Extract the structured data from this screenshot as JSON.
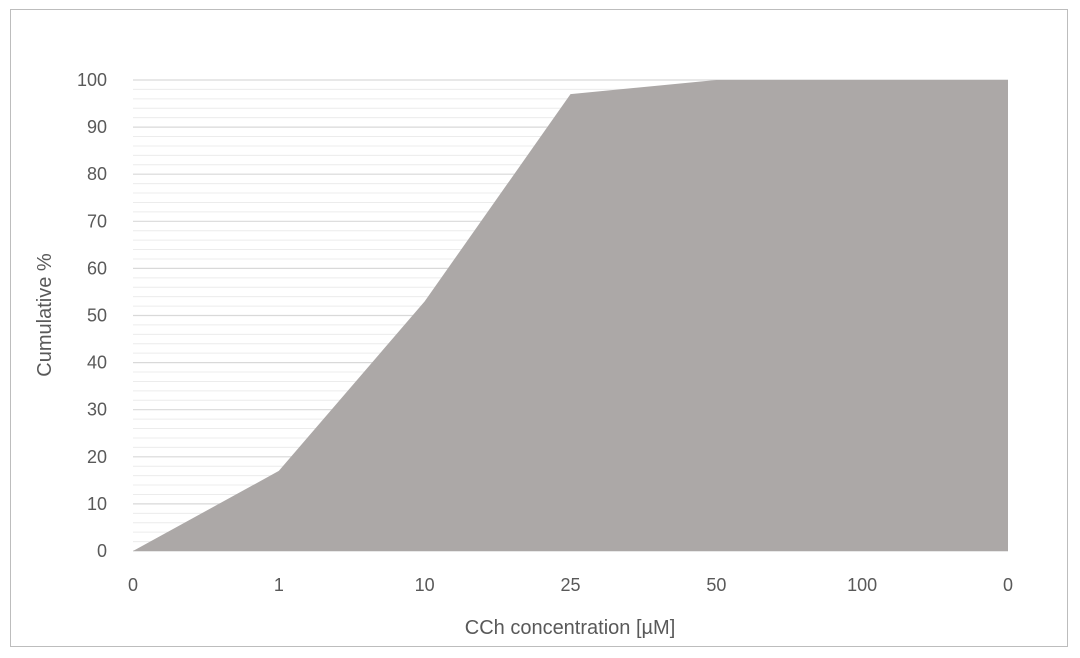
{
  "chart_data": {
    "type": "area",
    "title": "",
    "xlabel": "CCh concentration  [µM]",
    "ylabel": "Cumulative %",
    "categories": [
      "0",
      "1",
      "10",
      "25",
      "50",
      "100",
      "0"
    ],
    "series": [
      {
        "values": [
          0,
          17,
          53,
          97,
          100,
          100,
          100
        ]
      }
    ],
    "ylim": [
      0,
      100
    ],
    "yticks": [
      0,
      10,
      20,
      30,
      40,
      50,
      60,
      70,
      80,
      90,
      100
    ],
    "grid": true,
    "legend": "none",
    "colors": {
      "area": "#aca8a7",
      "major_grid": "#d9d9d9",
      "minor_grid": "#ececec",
      "text": "#595959"
    }
  }
}
